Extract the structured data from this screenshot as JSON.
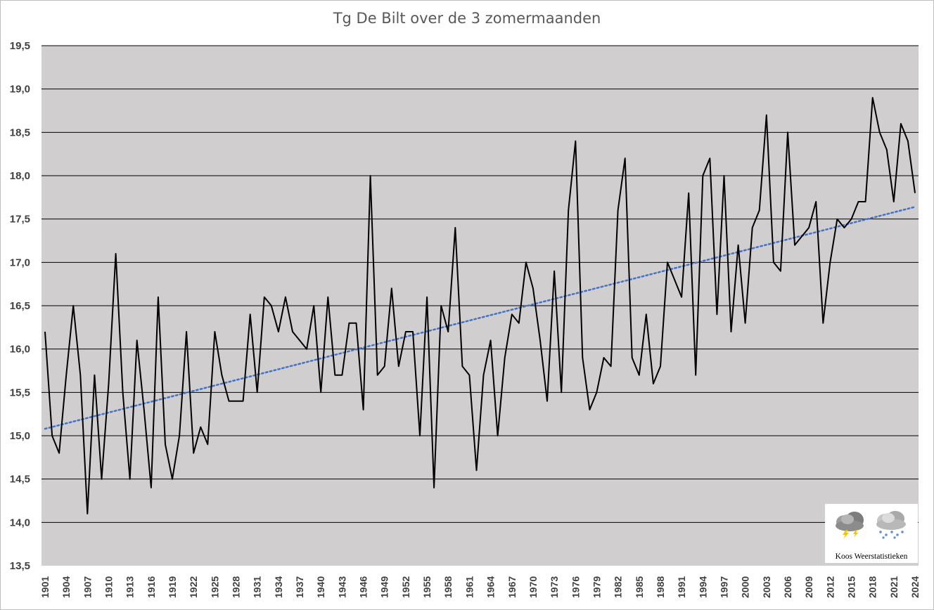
{
  "chart_data": {
    "type": "line",
    "title": "Tg De Bilt over de 3 zomermaanden",
    "xlabel": "",
    "ylabel": "",
    "ylim": [
      13.5,
      19.5
    ],
    "ytick_labels": [
      "13,5",
      "14,0",
      "14,5",
      "15,0",
      "15,5",
      "16,0",
      "16,5",
      "17,0",
      "17,5",
      "18,0",
      "18,5",
      "19,0",
      "19,5"
    ],
    "ytick_values": [
      13.5,
      14.0,
      14.5,
      15.0,
      15.5,
      16.0,
      16.5,
      17.0,
      17.5,
      18.0,
      18.5,
      19.0,
      19.5
    ],
    "x_start": 1901,
    "x_end": 2024,
    "xtick_labels": [
      "1901",
      "1904",
      "1907",
      "1910",
      "1913",
      "1916",
      "1919",
      "1922",
      "1925",
      "1928",
      "1931",
      "1934",
      "1937",
      "1940",
      "1943",
      "1946",
      "1949",
      "1952",
      "1955",
      "1958",
      "1961",
      "1964",
      "1967",
      "1970",
      "1973",
      "1976",
      "1979",
      "1982",
      "1985",
      "1988",
      "1991",
      "1994",
      "1997",
      "2000",
      "2003",
      "2006",
      "2009",
      "2012",
      "2015",
      "2018",
      "2021",
      "2024"
    ],
    "grid": true,
    "series": [
      {
        "name": "Tg",
        "color": "#000000",
        "values": [
          16.2,
          15.0,
          14.8,
          15.7,
          16.5,
          15.7,
          14.1,
          15.7,
          14.5,
          15.6,
          17.1,
          15.5,
          14.5,
          16.1,
          15.3,
          14.4,
          16.6,
          14.9,
          14.5,
          15.0,
          16.2,
          14.8,
          15.1,
          14.9,
          16.2,
          15.7,
          15.4,
          15.4,
          15.4,
          16.4,
          15.5,
          16.6,
          16.5,
          16.2,
          16.6,
          16.2,
          16.1,
          16.0,
          16.5,
          15.5,
          16.6,
          15.7,
          15.7,
          16.3,
          16.3,
          15.3,
          18.0,
          15.7,
          15.8,
          16.7,
          15.8,
          16.2,
          16.2,
          15.0,
          16.6,
          14.4,
          16.5,
          16.2,
          17.4,
          15.8,
          15.7,
          14.6,
          15.7,
          16.1,
          15.0,
          15.9,
          16.4,
          16.3,
          17.0,
          16.7,
          16.1,
          15.4,
          16.9,
          15.5,
          17.6,
          18.4,
          15.9,
          15.3,
          15.5,
          15.9,
          15.8,
          17.6,
          18.2,
          15.9,
          15.7,
          16.4,
          15.6,
          15.8,
          17.0,
          16.8,
          16.6,
          17.8,
          15.7,
          18.0,
          18.2,
          16.4,
          18.0,
          16.2,
          17.2,
          16.3,
          17.4,
          17.6,
          18.7,
          17.0,
          16.9,
          18.5,
          17.2,
          17.3,
          17.4,
          17.7,
          16.3,
          17.0,
          17.5,
          17.4,
          17.5,
          17.7,
          17.7,
          18.9,
          18.5,
          18.3,
          17.7,
          18.6,
          18.4,
          17.8
        ]
      },
      {
        "name": "Trend",
        "color": "#4472c4",
        "style": "dotted",
        "start_value": 15.08,
        "end_value": 17.64
      }
    ]
  },
  "logo": {
    "text": "Koos Weerstatistieken",
    "icons": [
      "thunderstorm-cloud-icon",
      "snow-cloud-icon"
    ]
  }
}
